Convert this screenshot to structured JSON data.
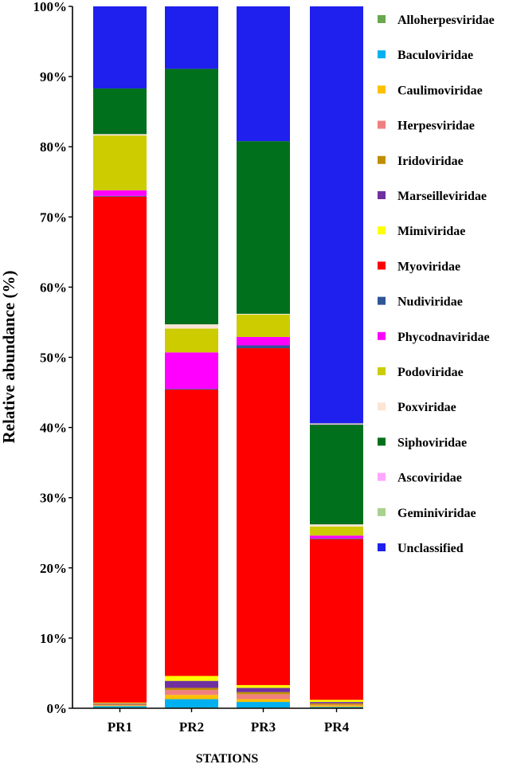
{
  "chart_data": {
    "type": "bar",
    "stacked": true,
    "percent": true,
    "categories": [
      "PR1",
      "PR2",
      "PR3",
      "PR4"
    ],
    "xlabel": "STATIONS",
    "ylabel": "Relative abundance (%)",
    "ylim": [
      0,
      100
    ],
    "yticks": [
      "0%",
      "10%",
      "20%",
      "30%",
      "40%",
      "50%",
      "60%",
      "70%",
      "80%",
      "90%",
      "100%"
    ],
    "legend_position": "right",
    "series": [
      {
        "name": "Alloherpesviridae",
        "color": "#6aa84f",
        "values": [
          0.1,
          0.1,
          0.1,
          0.1
        ]
      },
      {
        "name": "Baculoviridae",
        "color": "#00b0f0",
        "values": [
          0.2,
          1.2,
          0.8,
          0.1
        ]
      },
      {
        "name": "Caulimoviridae",
        "color": "#ffc000",
        "values": [
          0.1,
          0.6,
          0.4,
          0.2
        ]
      },
      {
        "name": "Herpesviridae",
        "color": "#f08080",
        "values": [
          0.1,
          0.7,
          0.7,
          0.1
        ]
      },
      {
        "name": "Iridoviridae",
        "color": "#bf8f00",
        "values": [
          0.1,
          0.3,
          0.3,
          0.2
        ]
      },
      {
        "name": "Marseilleviridae",
        "color": "#7030a0",
        "values": [
          0.1,
          1.0,
          0.6,
          0.2
        ]
      },
      {
        "name": "Mimiviridae",
        "color": "#ffff00",
        "values": [
          0.1,
          0.7,
          0.4,
          0.3
        ]
      },
      {
        "name": "Myoviridae",
        "color": "#ff0000",
        "values": [
          72.1,
          40.8,
          48.0,
          22.9
        ]
      },
      {
        "name": "Nudiviridae",
        "color": "#2f5597",
        "values": [
          0.1,
          0.1,
          0.4,
          0.1
        ]
      },
      {
        "name": "Phycodnaviridae",
        "color": "#ff00ff",
        "values": [
          0.8,
          5.2,
          1.2,
          0.4
        ]
      },
      {
        "name": "Podoviridae",
        "color": "#cccc00",
        "values": [
          7.8,
          3.4,
          3.2,
          1.3
        ]
      },
      {
        "name": "Poxviridae",
        "color": "#fce4d6",
        "values": [
          0.2,
          0.6,
          0.1,
          0.3
        ]
      },
      {
        "name": "Siphoviridae",
        "color": "#00701c",
        "values": [
          6.5,
          36.4,
          24.6,
          14.2
        ]
      },
      {
        "name": "Ascoviridae",
        "color": "#ffa6ff",
        "values": [
          0.0,
          0.0,
          0.0,
          0.1
        ]
      },
      {
        "name": "Geminiviridae",
        "color": "#a9d08e",
        "values": [
          0.0,
          0.0,
          0.0,
          0.1
        ]
      },
      {
        "name": "Unclassified",
        "color": "#1f1fee",
        "values": [
          11.7,
          8.9,
          19.2,
          59.4
        ]
      }
    ]
  }
}
